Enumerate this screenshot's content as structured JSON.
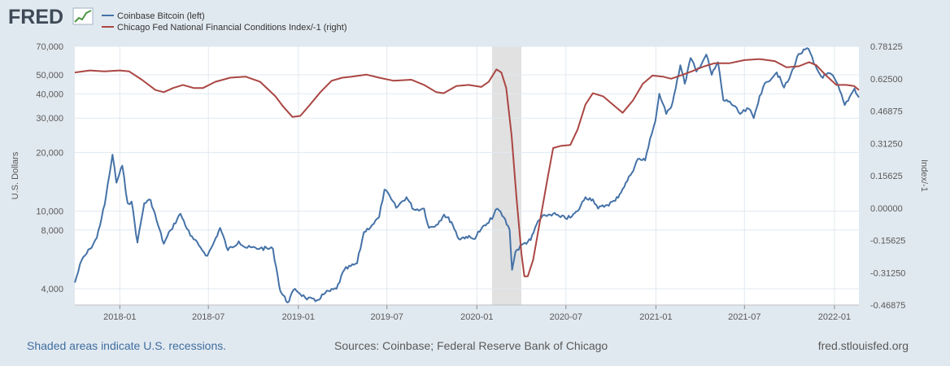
{
  "logo": {
    "text": "FRED"
  },
  "footer": {
    "left": "Shaded areas indicate U.S. recessions.",
    "center": "Sources: Coinbase; Federal Reserve Bank of Chicago",
    "right": "fred.stlouisfed.org"
  },
  "colors": {
    "background": "#e1e9f0",
    "plot": "#ffffff",
    "grid": "#e1e9f0",
    "btc": "#4572a7",
    "nfci": "#aa4643",
    "recession": "#e1e1e1"
  },
  "chart_data": {
    "type": "line",
    "legend": [
      "Coinbase Bitcoin (left)",
      "Chicago Fed National Financial Conditions Index/-1 (right)"
    ],
    "legend_position": "top-left",
    "ylabel_left": "U.S. Dollars",
    "ylabel_right": "Index/-1",
    "y_left_scale": "log",
    "y_left_ticks": [
      4000,
      8000,
      10000,
      20000,
      30000,
      40000,
      50000,
      70000
    ],
    "y_left_tick_labels": [
      "4,000",
      "8,000",
      "10,000",
      "20,000",
      "30,000",
      "40,000",
      "50,000",
      "70,000"
    ],
    "ylim_left": [
      3300,
      70000
    ],
    "y_right_ticks": [
      -0.46875,
      -0.3125,
      -0.15625,
      0.0,
      0.15625,
      0.3125,
      0.46875,
      0.625,
      0.78125
    ],
    "y_right_tick_labels": [
      "-0.46875",
      "-0.31250",
      "-0.15625",
      "0.00000",
      "0.15625",
      "0.31250",
      "0.46875",
      "0.62500",
      "0.78125"
    ],
    "ylim_right": [
      -0.46875,
      0.78125
    ],
    "x_ticks": [
      "2018-01",
      "2018-07",
      "2019-01",
      "2019-07",
      "2020-01",
      "2020-07",
      "2021-01",
      "2021-07",
      "2022-01"
    ],
    "xlim": [
      "2017-10-01",
      "2022-02-20"
    ],
    "recessions": [
      {
        "start": "2020-02-01",
        "end": "2020-04-01"
      }
    ],
    "grid": true,
    "series": [
      {
        "name": "Coinbase Bitcoin (left)",
        "axis": "left",
        "points": [
          [
            "2017-10-01",
            4300
          ],
          [
            "2017-10-15",
            5600
          ],
          [
            "2017-11-01",
            6400
          ],
          [
            "2017-11-15",
            7300
          ],
          [
            "2017-12-01",
            10800
          ],
          [
            "2017-12-10",
            15000
          ],
          [
            "2017-12-17",
            19500
          ],
          [
            "2017-12-25",
            14000
          ],
          [
            "2018-01-06",
            17100
          ],
          [
            "2018-01-17",
            11000
          ],
          [
            "2018-01-25",
            11200
          ],
          [
            "2018-02-06",
            6900
          ],
          [
            "2018-02-20",
            11000
          ],
          [
            "2018-03-05",
            11400
          ],
          [
            "2018-03-20",
            8500
          ],
          [
            "2018-04-01",
            6800
          ],
          [
            "2018-04-15",
            8000
          ],
          [
            "2018-05-05",
            9700
          ],
          [
            "2018-05-25",
            7500
          ],
          [
            "2018-06-15",
            6500
          ],
          [
            "2018-06-29",
            5900
          ],
          [
            "2018-07-10",
            6700
          ],
          [
            "2018-07-25",
            8200
          ],
          [
            "2018-08-10",
            6300
          ],
          [
            "2018-09-01",
            7000
          ],
          [
            "2018-09-15",
            6500
          ],
          [
            "2018-10-15",
            6450
          ],
          [
            "2018-11-10",
            6400
          ],
          [
            "2018-11-20",
            4600
          ],
          [
            "2018-11-25",
            3900
          ],
          [
            "2018-12-10",
            3400
          ],
          [
            "2018-12-25",
            4000
          ],
          [
            "2019-01-15",
            3600
          ],
          [
            "2019-02-05",
            3450
          ],
          [
            "2019-02-25",
            3800
          ],
          [
            "2019-03-20",
            4000
          ],
          [
            "2019-04-05",
            5000
          ],
          [
            "2019-05-01",
            5400
          ],
          [
            "2019-05-15",
            7800
          ],
          [
            "2019-06-01",
            8500
          ],
          [
            "2019-06-15",
            9300
          ],
          [
            "2019-06-26",
            12900
          ],
          [
            "2019-07-10",
            11500
          ],
          [
            "2019-07-20",
            10400
          ],
          [
            "2019-08-10",
            11800
          ],
          [
            "2019-08-25",
            10200
          ],
          [
            "2019-09-15",
            10300
          ],
          [
            "2019-09-25",
            8200
          ],
          [
            "2019-10-10",
            8500
          ],
          [
            "2019-10-26",
            9600
          ],
          [
            "2019-11-10",
            8800
          ],
          [
            "2019-11-25",
            7200
          ],
          [
            "2019-12-10",
            7400
          ],
          [
            "2019-12-25",
            7200
          ],
          [
            "2020-01-10",
            8100
          ],
          [
            "2020-01-25",
            8700
          ],
          [
            "2020-02-12",
            10300
          ],
          [
            "2020-02-25",
            9300
          ],
          [
            "2020-03-08",
            8000
          ],
          [
            "2020-03-13",
            5000
          ],
          [
            "2020-03-20",
            6200
          ],
          [
            "2020-04-05",
            6800
          ],
          [
            "2020-04-20",
            7100
          ],
          [
            "2020-05-05",
            8900
          ],
          [
            "2020-05-20",
            9500
          ],
          [
            "2020-06-05",
            9700
          ],
          [
            "2020-06-20",
            9300
          ],
          [
            "2020-07-10",
            9250
          ],
          [
            "2020-07-25",
            10000
          ],
          [
            "2020-08-10",
            11800
          ],
          [
            "2020-08-25",
            11500
          ],
          [
            "2020-09-05",
            10300
          ],
          [
            "2020-09-20",
            10700
          ],
          [
            "2020-10-10",
            11300
          ],
          [
            "2020-10-25",
            13000
          ],
          [
            "2020-11-10",
            15300
          ],
          [
            "2020-11-25",
            18500
          ],
          [
            "2020-12-10",
            18200
          ],
          [
            "2020-12-20",
            23500
          ],
          [
            "2020-12-31",
            29000
          ],
          [
            "2021-01-08",
            40000
          ],
          [
            "2021-01-22",
            31500
          ],
          [
            "2021-02-01",
            34000
          ],
          [
            "2021-02-20",
            56000
          ],
          [
            "2021-03-01",
            45000
          ],
          [
            "2021-03-13",
            61000
          ],
          [
            "2021-03-25",
            52000
          ],
          [
            "2021-04-14",
            63500
          ],
          [
            "2021-04-25",
            50000
          ],
          [
            "2021-05-08",
            58000
          ],
          [
            "2021-05-19",
            37000
          ],
          [
            "2021-06-01",
            36500
          ],
          [
            "2021-06-22",
            31500
          ],
          [
            "2021-07-10",
            33500
          ],
          [
            "2021-07-20",
            30000
          ],
          [
            "2021-08-01",
            39000
          ],
          [
            "2021-08-15",
            46000
          ],
          [
            "2021-09-05",
            51500
          ],
          [
            "2021-09-20",
            43000
          ],
          [
            "2021-10-01",
            48000
          ],
          [
            "2021-10-20",
            64000
          ],
          [
            "2021-11-09",
            68000
          ],
          [
            "2021-11-20",
            57000
          ],
          [
            "2021-12-05",
            49000
          ],
          [
            "2021-12-25",
            50500
          ],
          [
            "2022-01-05",
            46000
          ],
          [
            "2022-01-22",
            35000
          ],
          [
            "2022-02-01",
            38500
          ],
          [
            "2022-02-11",
            42500
          ],
          [
            "2022-02-20",
            38300
          ]
        ]
      },
      {
        "name": "Chicago Fed National Financial Conditions Index/-1 (right)",
        "axis": "right",
        "points": [
          [
            "2017-10-01",
            0.655
          ],
          [
            "2017-11-01",
            0.665
          ],
          [
            "2017-12-01",
            0.66
          ],
          [
            "2018-01-01",
            0.665
          ],
          [
            "2018-01-20",
            0.66
          ],
          [
            "2018-02-15",
            0.62
          ],
          [
            "2018-03-15",
            0.57
          ],
          [
            "2018-04-01",
            0.56
          ],
          [
            "2018-04-20",
            0.58
          ],
          [
            "2018-05-10",
            0.595
          ],
          [
            "2018-06-01",
            0.58
          ],
          [
            "2018-06-20",
            0.58
          ],
          [
            "2018-07-15",
            0.61
          ],
          [
            "2018-08-15",
            0.63
          ],
          [
            "2018-09-15",
            0.635
          ],
          [
            "2018-10-15",
            0.61
          ],
          [
            "2018-11-15",
            0.54
          ],
          [
            "2018-12-01",
            0.49
          ],
          [
            "2018-12-20",
            0.44
          ],
          [
            "2019-01-05",
            0.445
          ],
          [
            "2019-01-25",
            0.5
          ],
          [
            "2019-02-15",
            0.56
          ],
          [
            "2019-03-10",
            0.615
          ],
          [
            "2019-04-01",
            0.63
          ],
          [
            "2019-04-20",
            0.635
          ],
          [
            "2019-05-20",
            0.645
          ],
          [
            "2019-06-15",
            0.63
          ],
          [
            "2019-07-15",
            0.615
          ],
          [
            "2019-08-20",
            0.62
          ],
          [
            "2019-09-15",
            0.595
          ],
          [
            "2019-10-10",
            0.56
          ],
          [
            "2019-10-25",
            0.555
          ],
          [
            "2019-11-20",
            0.59
          ],
          [
            "2019-12-15",
            0.595
          ],
          [
            "2020-01-10",
            0.585
          ],
          [
            "2020-01-25",
            0.61
          ],
          [
            "2020-02-10",
            0.67
          ],
          [
            "2020-02-20",
            0.655
          ],
          [
            "2020-03-01",
            0.58
          ],
          [
            "2020-03-12",
            0.35
          ],
          [
            "2020-03-22",
            0.05
          ],
          [
            "2020-04-01",
            -0.22
          ],
          [
            "2020-04-07",
            -0.33
          ],
          [
            "2020-04-14",
            -0.33
          ],
          [
            "2020-04-25",
            -0.25
          ],
          [
            "2020-05-10",
            -0.05
          ],
          [
            "2020-05-25",
            0.15
          ],
          [
            "2020-06-05",
            0.29
          ],
          [
            "2020-06-20",
            0.3
          ],
          [
            "2020-07-10",
            0.305
          ],
          [
            "2020-07-25",
            0.38
          ],
          [
            "2020-08-10",
            0.5
          ],
          [
            "2020-08-25",
            0.555
          ],
          [
            "2020-09-15",
            0.54
          ],
          [
            "2020-10-10",
            0.49
          ],
          [
            "2020-10-25",
            0.46
          ],
          [
            "2020-11-15",
            0.52
          ],
          [
            "2020-12-05",
            0.6
          ],
          [
            "2020-12-25",
            0.64
          ],
          [
            "2021-01-15",
            0.635
          ],
          [
            "2021-02-01",
            0.625
          ],
          [
            "2021-02-20",
            0.64
          ],
          [
            "2021-03-15",
            0.66
          ],
          [
            "2021-04-10",
            0.685
          ],
          [
            "2021-05-01",
            0.7
          ],
          [
            "2021-06-01",
            0.7
          ],
          [
            "2021-07-01",
            0.715
          ],
          [
            "2021-08-01",
            0.72
          ],
          [
            "2021-09-01",
            0.71
          ],
          [
            "2021-09-25",
            0.68
          ],
          [
            "2021-10-20",
            0.685
          ],
          [
            "2021-11-10",
            0.705
          ],
          [
            "2021-11-25",
            0.69
          ],
          [
            "2021-12-15",
            0.64
          ],
          [
            "2022-01-05",
            0.595
          ],
          [
            "2022-01-25",
            0.595
          ],
          [
            "2022-02-10",
            0.59
          ],
          [
            "2022-02-20",
            0.57
          ]
        ]
      }
    ]
  }
}
